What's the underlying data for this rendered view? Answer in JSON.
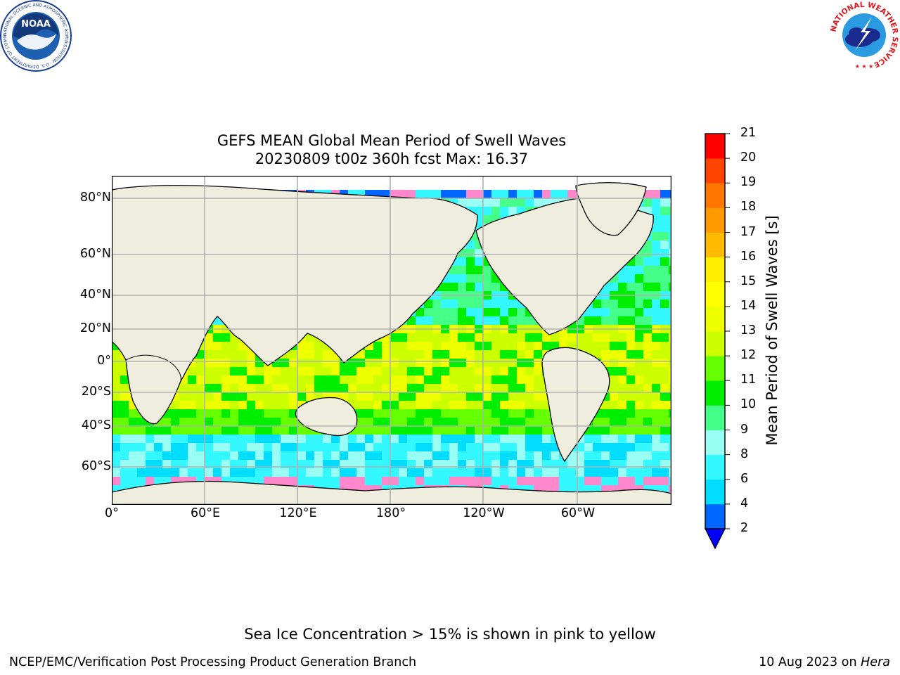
{
  "logos": {
    "noaa": {
      "word": "NOAA",
      "ring_text": "NATIONAL OCEANIC AND ATMOSPHERIC ADMINISTRATION · U.S. DEPARTMENT OF COMMERCE"
    },
    "nws": {
      "ring_text": "NATIONAL WEATHER SERVICE"
    }
  },
  "map": {
    "title": "GEFS MEAN Global Mean Period of Swell Waves",
    "subtitle": "20230809 t00z 360h fcst   Max: 16.37",
    "lat_labels": [
      "80°N",
      "60°N",
      "40°N",
      "20°N",
      "0°",
      "20°S",
      "40°S",
      "60°S"
    ],
    "lon_labels": [
      "0°",
      "60°E",
      "120°E",
      "180°",
      "120°W",
      "60°W"
    ],
    "land_color": "#efedde",
    "grid_color": "#b0b0b0"
  },
  "colorbar": {
    "label": "Mean Period of Swell Waves [s]",
    "ticks": [
      "2",
      "4",
      "6",
      "8",
      "9",
      "10",
      "11",
      "12",
      "13",
      "14",
      "15",
      "16",
      "17",
      "18",
      "19",
      "20",
      "21"
    ],
    "colors": [
      "#0066ff",
      "#00ddff",
      "#33f8ff",
      "#99fff5",
      "#44ff88",
      "#00ee00",
      "#66ff00",
      "#ccff00",
      "#eeff00",
      "#ffff00",
      "#ffee00",
      "#ffbb00",
      "#ff9900",
      "#ff7700",
      "#ff4400",
      "#ff0000"
    ],
    "under_color": "#0000ff"
  },
  "footer": {
    "note": "Sea Ice Concentration > 15% is shown in pink to yellow",
    "credit": "NCEP/EMC/Verification Post Processing Product Generation Branch",
    "date": "10 Aug 2023 on",
    "machine": "Hera"
  }
}
